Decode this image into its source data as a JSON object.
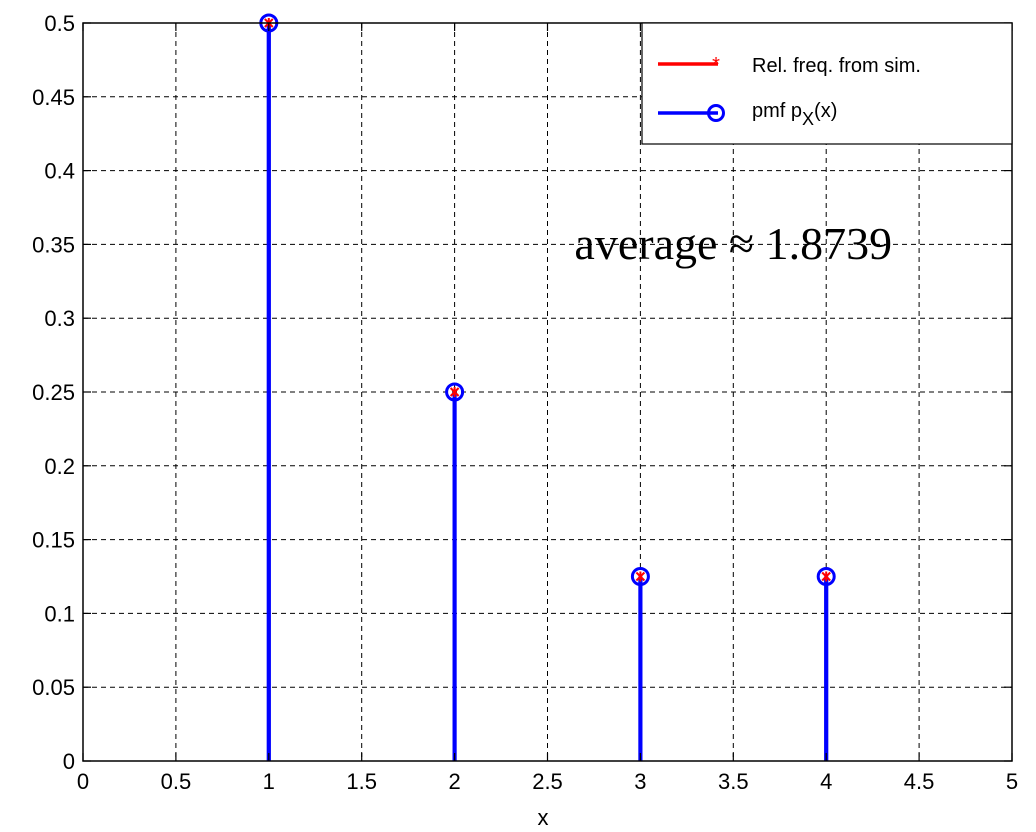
{
  "chart_data": {
    "type": "stem",
    "xlabel": "x",
    "ylabel": "",
    "xlim": [
      0,
      5
    ],
    "ylim": [
      0,
      0.5
    ],
    "xticks": [
      "0",
      "0.5",
      "1",
      "1.5",
      "2",
      "2.5",
      "3",
      "3.5",
      "4",
      "4.5",
      "5"
    ],
    "yticks": [
      "0",
      "0.05",
      "0.1",
      "0.15",
      "0.2",
      "0.25",
      "0.3",
      "0.35",
      "0.4",
      "0.45",
      "0.5"
    ],
    "grid": true,
    "legend_placement": "top-right",
    "series": [
      {
        "name": "Rel. freq. from sim.",
        "color": "#ff0000",
        "marker": "asterisk",
        "x": [
          1,
          2,
          3,
          4
        ],
        "y": [
          0.5,
          0.25,
          0.125,
          0.125
        ]
      },
      {
        "name": "pmf p",
        "name_subscript": "X",
        "name_suffix": "(x)",
        "color": "#0000ff",
        "marker": "circle",
        "x": [
          1,
          2,
          3,
          4
        ],
        "y": [
          0.5,
          0.25,
          0.125,
          0.125
        ]
      }
    ],
    "annotation": {
      "text": "average ≈ 1.8739",
      "x": 3.5,
      "y": 0.34
    }
  }
}
